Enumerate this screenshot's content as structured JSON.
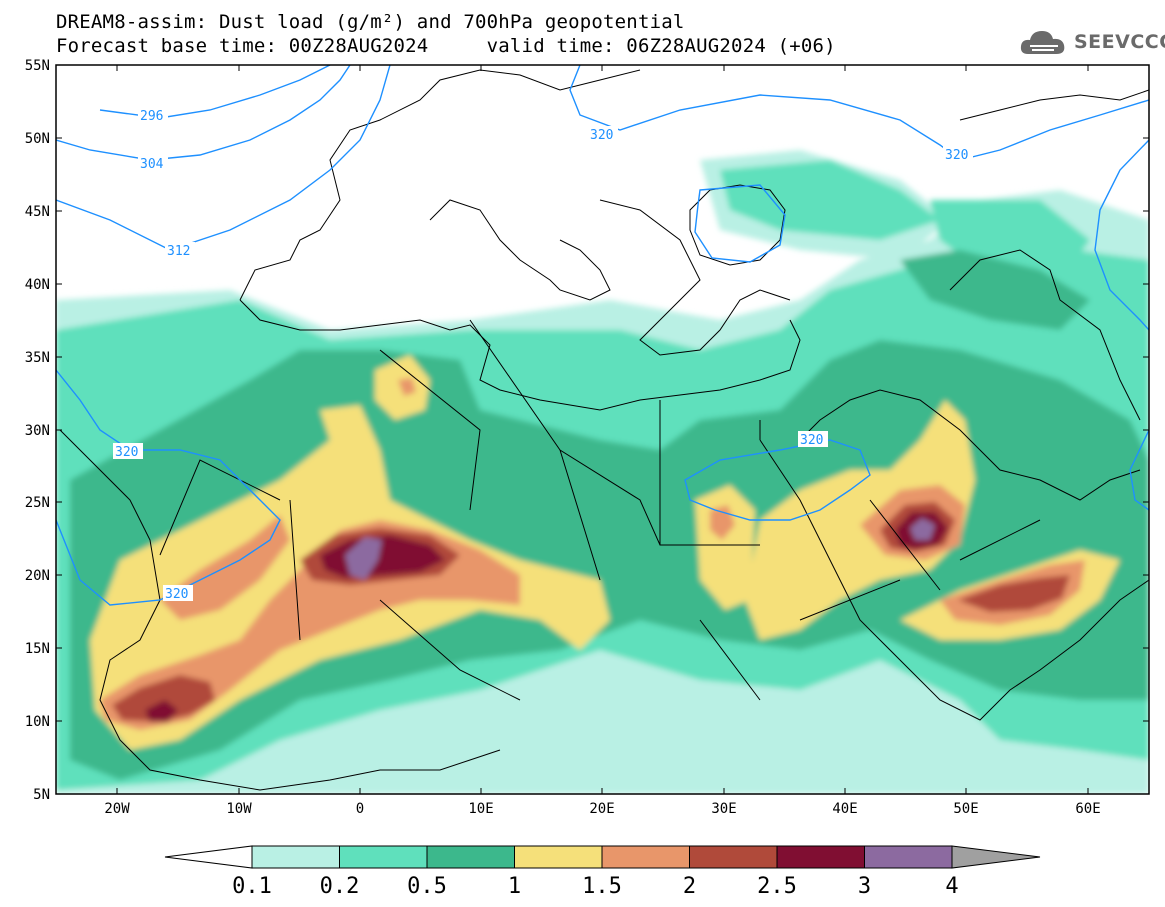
{
  "header": {
    "title_line1": "DREAM8-assim: Dust load (g/m²) and 700hPa geopotential",
    "title_line2": "Forecast base time: 00Z28AUG2024     valid time: 06Z28AUG2024 (+06)",
    "logo_text": "SEEVCCC"
  },
  "map": {
    "lat_labels": [
      "55N",
      "50N",
      "45N",
      "40N",
      "35N",
      "30N",
      "25N",
      "20N",
      "15N",
      "10N",
      "5N"
    ],
    "lon_labels": [
      "20W",
      "10W",
      "0",
      "10E",
      "20E",
      "30E",
      "40E",
      "50E",
      "60E"
    ],
    "geopotential_contours": [
      {
        "value": "296",
        "label": "296"
      },
      {
        "value": "304",
        "label": "304"
      },
      {
        "value": "312",
        "label": "312"
      },
      {
        "value": "320",
        "label": "320"
      }
    ],
    "colors": {
      "contour": "#1e90ff",
      "land": "#ffffff",
      "border": "#000000"
    }
  },
  "colorbar": {
    "labels": [
      "0.1",
      "0.2",
      "0.5",
      "1",
      "1.5",
      "2",
      "2.5",
      "3",
      "4"
    ],
    "colors": [
      "#b9f0e4",
      "#5fe0bc",
      "#3cb88c",
      "#f5e07a",
      "#e8966a",
      "#b04a3a",
      "#800e32",
      "#8c6aa0"
    ],
    "under_color": "#ffffff",
    "over_color": "#a0a0a0"
  }
}
